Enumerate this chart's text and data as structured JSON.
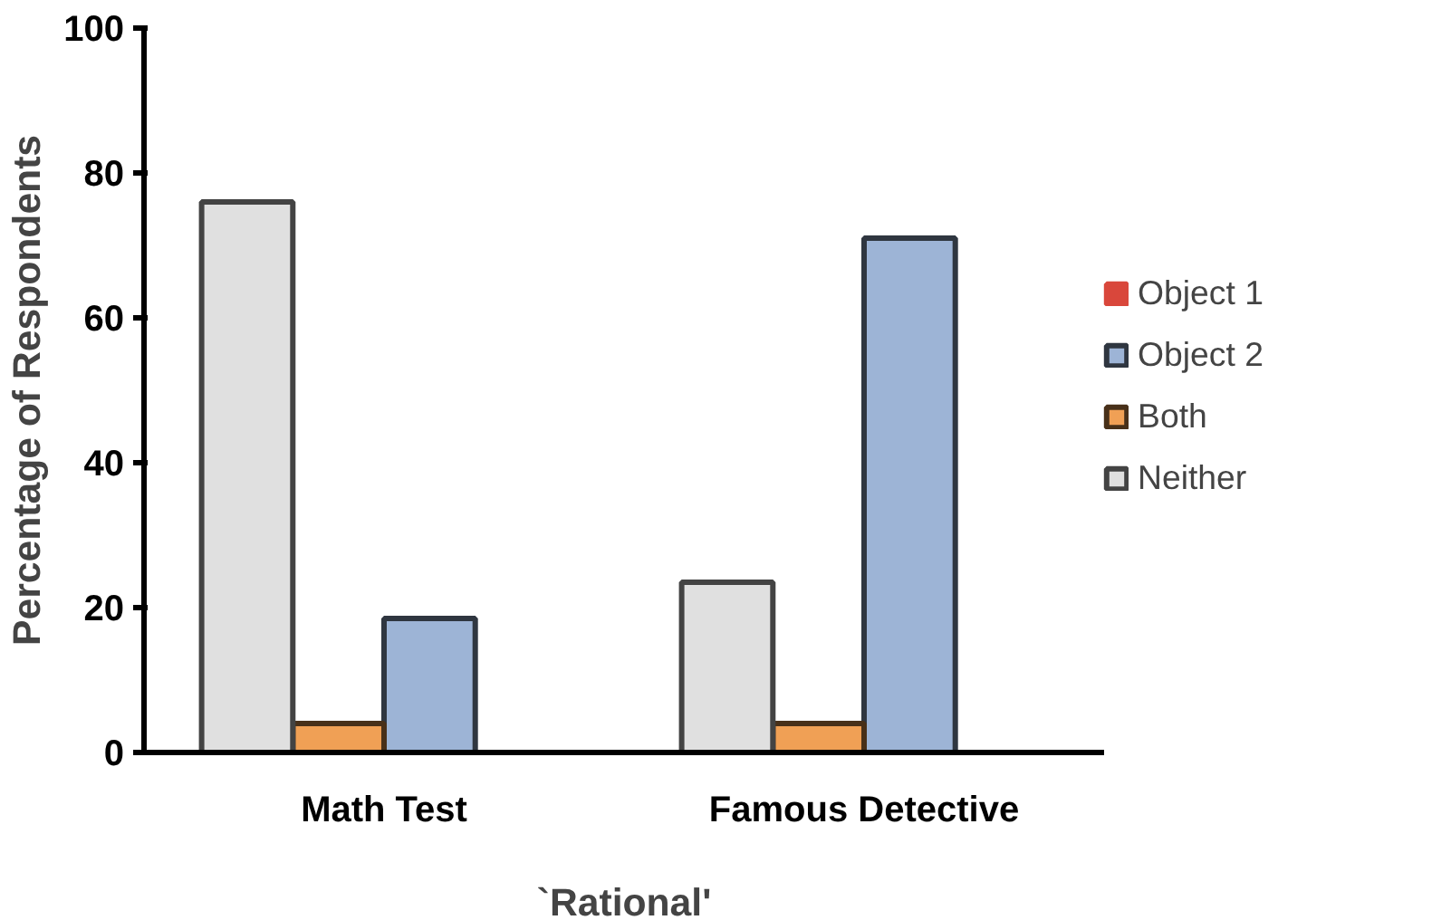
{
  "chart_data": {
    "type": "bar",
    "xlabel": "`Rational'",
    "ylabel": "Percentage of Respondents",
    "categories": [
      "Math Test",
      "Famous Detective"
    ],
    "series": [
      {
        "name": "Object 1",
        "color": "#d9473b",
        "values": [
          0,
          0
        ]
      },
      {
        "name": "Object 2",
        "color": "#9db4d6",
        "values": [
          18.5,
          71
        ]
      },
      {
        "name": "Both",
        "color": "#f0a055",
        "values": [
          4,
          4
        ]
      },
      {
        "name": "Neither",
        "color": "#e0e0e0",
        "values": [
          76,
          23.5
        ]
      }
    ],
    "ylim": [
      0,
      100
    ],
    "yticks": [
      0,
      20,
      40,
      60,
      80,
      100
    ],
    "grid": false,
    "legend": "right"
  }
}
